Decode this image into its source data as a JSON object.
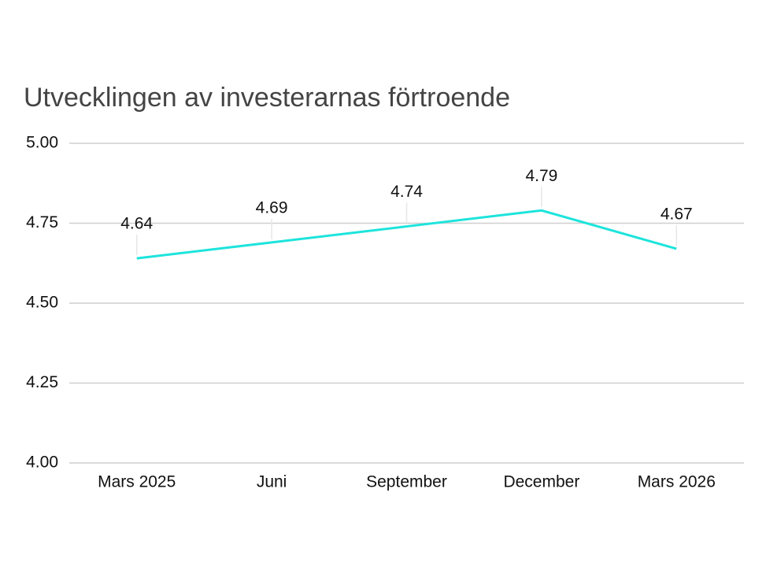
{
  "chart_data": {
    "type": "line",
    "title": "Utvecklingen av investerarnas förtroende",
    "categories": [
      "Mars 2025",
      "Juni",
      "September",
      "December",
      "Mars 2026"
    ],
    "series": [
      {
        "color": "#1de4dc",
        "values": [
          4.64,
          4.69,
          4.74,
          4.79,
          4.67
        ]
      }
    ],
    "ylim": [
      4,
      5
    ],
    "yticks": [
      {
        "value": 4,
        "label": "4.00"
      },
      {
        "value": 4.25,
        "label": "4.25"
      },
      {
        "value": 4.5,
        "label": "4.50"
      },
      {
        "value": 4.75,
        "label": "4.75"
      },
      {
        "value": 5,
        "label": "5.00"
      }
    ],
    "grid": true
  }
}
